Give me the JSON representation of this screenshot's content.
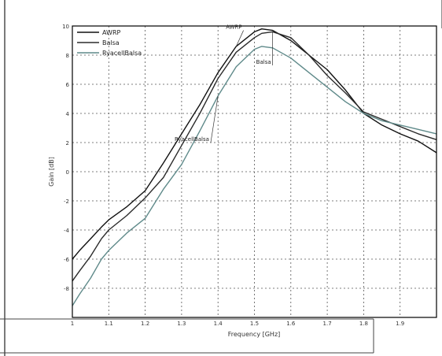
{
  "chart_data": {
    "type": "line",
    "xlabel": "Frequency [GHz]",
    "ylabel": "Gain [dB]",
    "xlim": [
      1.0,
      2.0
    ],
    "ylim": [
      -10,
      10
    ],
    "xticks": [
      "1",
      "1.1",
      "1.2",
      "1.3",
      "1.4",
      "1.5",
      "1.6",
      "1.7",
      "1.8",
      "1.9"
    ],
    "yticks": [
      "10",
      "8",
      "6",
      "4",
      "2",
      "0",
      "-2",
      "-4",
      "-6",
      "-8"
    ],
    "grid": true,
    "legend_position": "top-left",
    "series": [
      {
        "name": "AWRP",
        "color": "#111111",
        "x": [
          1.0,
          1.02,
          1.05,
          1.08,
          1.1,
          1.15,
          1.2,
          1.25,
          1.3,
          1.35,
          1.4,
          1.45,
          1.5,
          1.52,
          1.55,
          1.6,
          1.65,
          1.7,
          1.75,
          1.8,
          1.85,
          1.9,
          1.95,
          2.0
        ],
        "y": [
          -6.0,
          -5.4,
          -4.6,
          -3.8,
          -3.3,
          -2.4,
          -1.3,
          0.6,
          2.6,
          4.6,
          6.8,
          8.6,
          9.6,
          9.8,
          9.7,
          9.0,
          8.0,
          7.0,
          5.6,
          4.0,
          3.2,
          2.6,
          2.1,
          1.3
        ]
      },
      {
        "name": "Balsa",
        "color": "#2b2b2b",
        "x": [
          1.0,
          1.02,
          1.05,
          1.08,
          1.1,
          1.15,
          1.2,
          1.25,
          1.3,
          1.35,
          1.4,
          1.45,
          1.5,
          1.52,
          1.55,
          1.6,
          1.65,
          1.7,
          1.75,
          1.8,
          1.85,
          1.9,
          1.95,
          2.0
        ],
        "y": [
          -7.5,
          -6.8,
          -5.8,
          -4.6,
          -4.0,
          -3.0,
          -1.8,
          -0.4,
          1.8,
          4.0,
          6.4,
          8.2,
          9.2,
          9.5,
          9.6,
          9.2,
          8.0,
          6.6,
          5.4,
          4.1,
          3.6,
          3.1,
          2.6,
          2.2
        ]
      },
      {
        "name": "RyacellBalsa",
        "color": "#5f8a8a",
        "x": [
          1.0,
          1.02,
          1.05,
          1.08,
          1.1,
          1.15,
          1.2,
          1.25,
          1.3,
          1.35,
          1.4,
          1.45,
          1.5,
          1.52,
          1.55,
          1.6,
          1.65,
          1.7,
          1.75,
          1.8,
          1.85,
          1.9,
          1.95,
          2.0
        ],
        "y": [
          -9.2,
          -8.4,
          -7.3,
          -6.0,
          -5.4,
          -4.2,
          -3.2,
          -1.2,
          0.5,
          2.8,
          5.2,
          7.2,
          8.4,
          8.6,
          8.5,
          7.8,
          6.8,
          5.8,
          4.8,
          4.0,
          3.5,
          3.2,
          2.9,
          2.6
        ]
      }
    ],
    "annotations": [
      {
        "text": "AWRP",
        "series": 0,
        "x": 1.47,
        "y": 9.7
      },
      {
        "text": "Balsa",
        "series": 1,
        "x": 1.55,
        "y": 7.3
      },
      {
        "text": "RyacellBalsa",
        "series": 2,
        "x": 1.38,
        "y": 2.0
      }
    ]
  }
}
